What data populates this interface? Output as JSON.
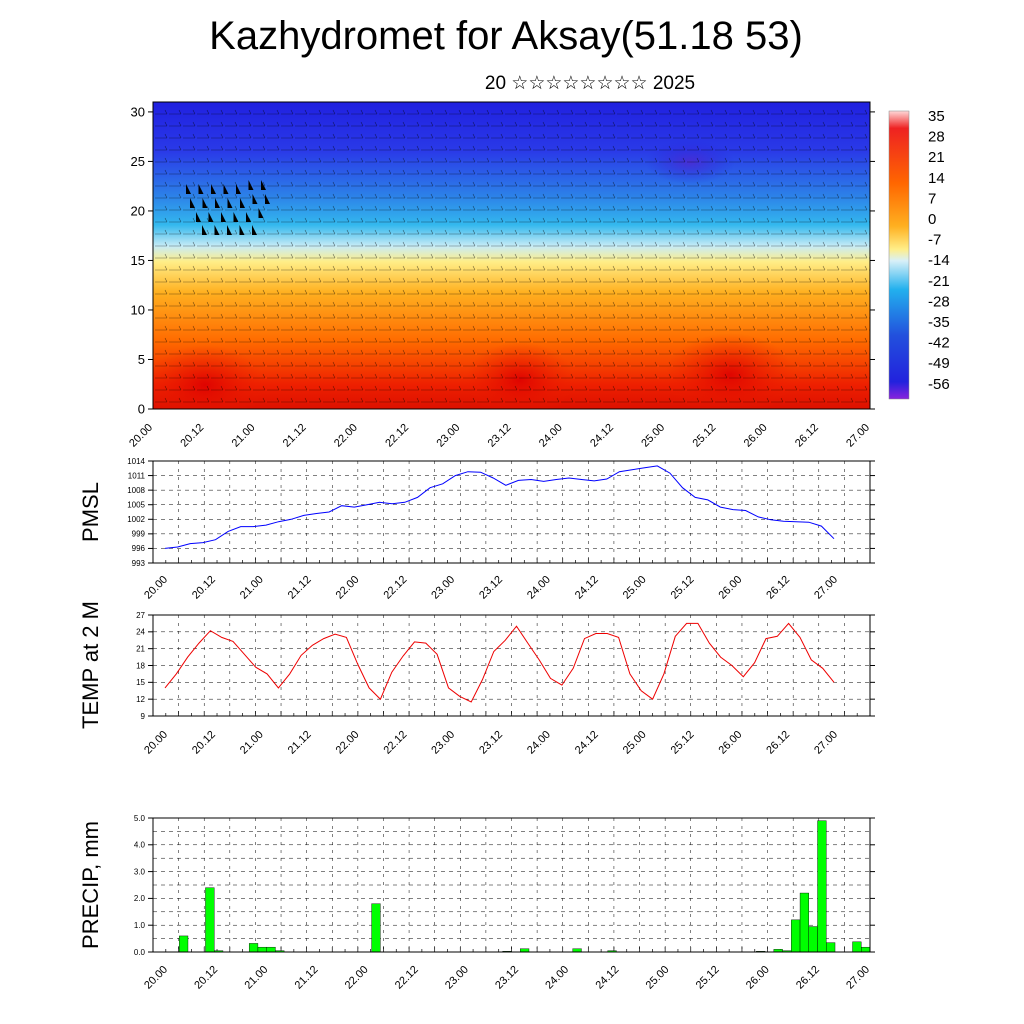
{
  "header": {
    "title": "Kazhydromet for Aksay(51.18 53)",
    "subtitle": "20 ☆☆☆☆☆☆☆☆ 2025"
  },
  "x_ticks": [
    "20.00",
    "20.12",
    "21.00",
    "21.12",
    "22.00",
    "22.12",
    "23.00",
    "23.12",
    "24.00",
    "24.12",
    "25.00",
    "25.12",
    "26.00",
    "26.12",
    "27.00"
  ],
  "chart_data": [
    {
      "type": "heatmap",
      "name": "cross-section",
      "xlabel": "",
      "ylabel": "",
      "ylim": [
        0,
        31
      ],
      "yticks": [
        0,
        5,
        10,
        15,
        20,
        25,
        30
      ],
      "colorbar_labels": [
        "35",
        "28",
        "21",
        "14",
        "7",
        "0",
        "-7",
        "-14",
        "-21",
        "-28",
        "-35",
        "-42",
        "-49",
        "-56"
      ],
      "colors": {
        "top": "#2222dd",
        "mid_cold": "#22aaee",
        "freezing": "#ffee88",
        "warm": "#ff8800",
        "hot": "#ee0000"
      }
    },
    {
      "type": "line",
      "ylabel": "PMSL",
      "ylim": [
        993,
        1014
      ],
      "yticks": [
        993,
        996,
        999,
        1002,
        1005,
        1008,
        1011,
        1014
      ],
      "color": "#0000ff",
      "values": [
        996,
        996.3,
        997,
        997.2,
        997.8,
        999.5,
        1000.5,
        1000.5,
        1000.8,
        1001.5,
        1002,
        1002.8,
        1003.2,
        1003.5,
        1004.8,
        1004.5,
        1005,
        1005.5,
        1005.2,
        1005.5,
        1006.5,
        1008.5,
        1009.3,
        1011,
        1011.8,
        1011.7,
        1010.5,
        1009,
        1010,
        1010.2,
        1009.8,
        1010.2,
        1010.5,
        1010.2,
        1009.9,
        1010.3,
        1011.8,
        1012.2,
        1012.6,
        1013,
        1011.5,
        1008.5,
        1006.5,
        1006,
        1004.5,
        1004,
        1003.8,
        1002.5,
        1001.9,
        1001.6,
        1001.5,
        1001.4,
        1000.6,
        998
      ]
    },
    {
      "type": "line",
      "ylabel": "TEMP at 2 M",
      "ylim": [
        9,
        27
      ],
      "yticks": [
        9,
        12,
        15,
        18,
        21,
        24,
        27
      ],
      "color": "#ee0000",
      "values": [
        14,
        16.5,
        19.5,
        22,
        24.2,
        23,
        22.3,
        20,
        17.7,
        16.5,
        14,
        16.5,
        19.8,
        21.6,
        22.8,
        23.6,
        23,
        18.2,
        14,
        12,
        16.8,
        19.7,
        22.2,
        22,
        20,
        14,
        12.5,
        11.5,
        15.5,
        20.5,
        22.5,
        25,
        22,
        19,
        15.7,
        14.5,
        17.5,
        22.8,
        23.7,
        23.7,
        23,
        16.5,
        13.5,
        12,
        16.5,
        23.2,
        25.5,
        25.5,
        22,
        19.5,
        18,
        16,
        18.5,
        22.8,
        23.2,
        25.5,
        23,
        19,
        17.5,
        15
      ]
    },
    {
      "type": "bar",
      "ylabel": "PRECIP, mm",
      "ylim": [
        0,
        5
      ],
      "yticks": [
        "0.0",
        "1.0",
        "2.0",
        "3.0",
        "4.0",
        "5.0"
      ],
      "color": "#00ff00",
      "values": [
        0,
        0,
        0,
        0.6,
        0,
        0,
        2.4,
        0.05,
        0,
        0,
        0,
        0.32,
        0.18,
        0.18,
        0.05,
        0,
        0,
        0,
        0,
        0,
        0,
        0,
        0,
        0,
        0,
        1.8,
        0,
        0,
        0,
        0,
        0,
        0,
        0,
        0,
        0,
        0,
        0,
        0,
        0,
        0,
        0.03,
        0,
        0.12,
        0,
        0,
        0,
        0,
        0,
        0.12,
        0,
        0,
        0,
        0.05,
        0,
        0,
        0,
        0,
        0,
        0,
        0,
        0,
        0,
        0,
        0,
        0,
        0,
        0,
        0,
        0,
        0.03,
        0,
        0.1,
        0.05,
        1.2,
        2.2,
        0.95,
        4.9,
        0.35,
        0,
        0,
        0.38,
        0.18
      ]
    }
  ]
}
